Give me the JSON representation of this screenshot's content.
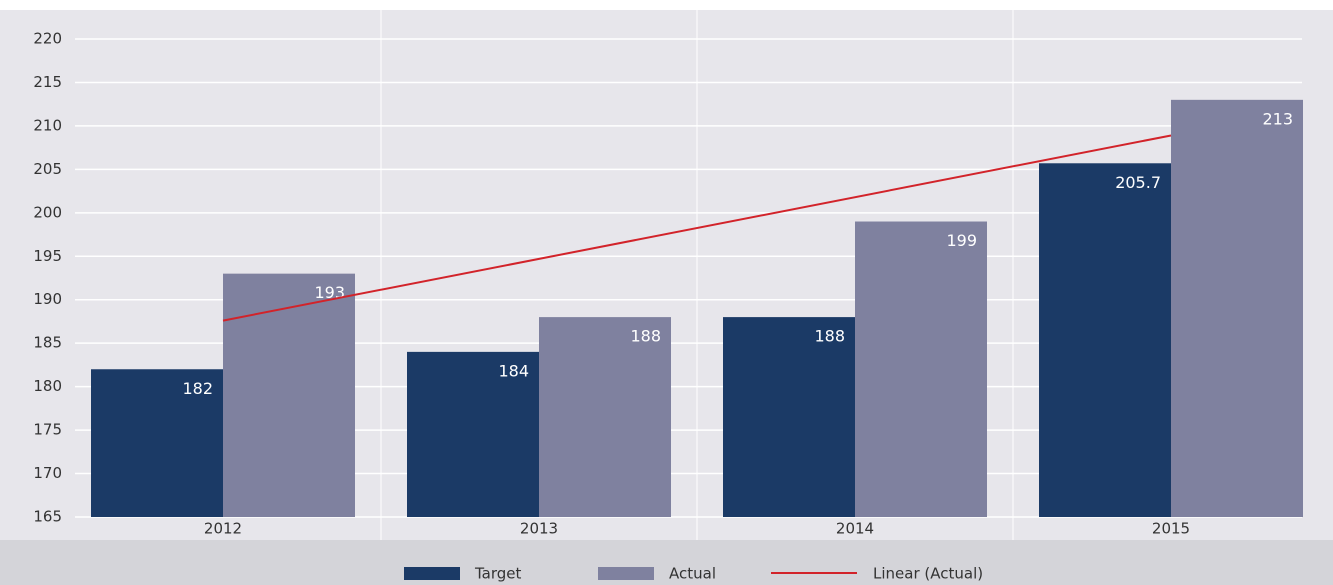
{
  "chart_data": {
    "type": "bar",
    "categories": [
      "2012",
      "2013",
      "2014",
      "2015"
    ],
    "series": [
      {
        "name": "Target",
        "color": "#1b3a66",
        "values": [
          182,
          184,
          188,
          205.7
        ]
      },
      {
        "name": "Actual",
        "color": "#7f819f",
        "values": [
          193,
          188,
          199,
          213
        ]
      }
    ],
    "trendline": {
      "name": "Linear (Actual)",
      "color": "#d2232a"
    },
    "ylim": [
      165,
      220
    ],
    "yticks": [
      165,
      170,
      175,
      180,
      185,
      190,
      195,
      200,
      205,
      210,
      215,
      220
    ],
    "grid": true
  }
}
